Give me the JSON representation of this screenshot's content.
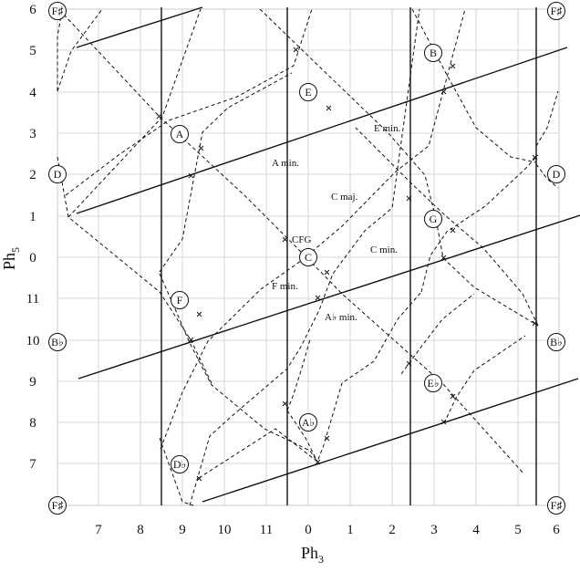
{
  "x_axis": {
    "title": "Ph",
    "subscript": "3",
    "ticks": [
      "7",
      "8",
      "9",
      "10",
      "11",
      "0",
      "1",
      "2",
      "3",
      "4",
      "5",
      "6"
    ]
  },
  "y_axis": {
    "title": "Ph",
    "subscript": "5",
    "ticks": [
      "6",
      "5",
      "4",
      "3",
      "2",
      "1",
      "0",
      "11",
      "10",
      "9",
      "8",
      "7"
    ]
  },
  "nodes": [
    {
      "label": "F♯"
    },
    {
      "label": "F♯"
    },
    {
      "label": "F♯"
    },
    {
      "label": "F♯"
    },
    {
      "label": "D"
    },
    {
      "label": "D"
    },
    {
      "label": "B♭"
    },
    {
      "label": "B♭"
    },
    {
      "label": "A"
    },
    {
      "label": "E"
    },
    {
      "label": "B"
    },
    {
      "label": "G"
    },
    {
      "label": "C"
    },
    {
      "label": "F"
    },
    {
      "label": "E♭"
    },
    {
      "label": "A♭"
    },
    {
      "label": "D♭"
    }
  ],
  "regions": [
    {
      "label": "E min."
    },
    {
      "label": "A min."
    },
    {
      "label": "C maj."
    },
    {
      "label": "CFG"
    },
    {
      "label": "C min."
    },
    {
      "label": "F min."
    },
    {
      "label": "A♭ min."
    }
  ]
}
